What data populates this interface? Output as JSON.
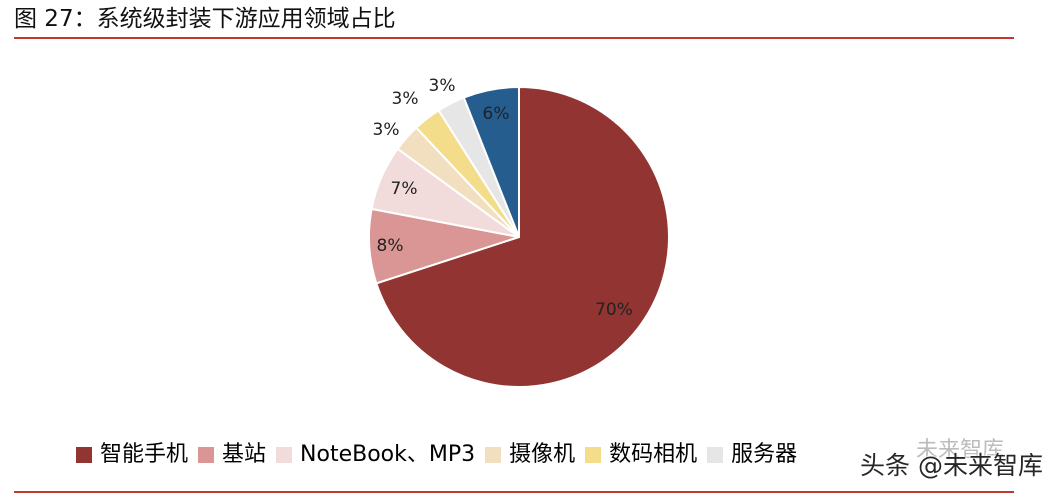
{
  "title": "图 27：系统级封装下游应用领域占比",
  "chart_data": {
    "type": "pie",
    "title": "",
    "start_angle_deg": 0,
    "direction": "clockwise",
    "slices": [
      {
        "label": "智能手机",
        "value": 70,
        "display": "70%",
        "color": "#923432"
      },
      {
        "label": "基站",
        "value": 8,
        "display": "8%",
        "color": "#d99694"
      },
      {
        "label": "NoteBook、MP3",
        "value": 7,
        "display": "7%",
        "color": "#f2dcdb"
      },
      {
        "label": "摄像机",
        "value": 3,
        "display": "3%",
        "color": "#f2dfc0"
      },
      {
        "label": "数码相机",
        "value": 3,
        "display": "3%",
        "color": "#f3dc8a"
      },
      {
        "label": "服务器",
        "value": 3,
        "display": "3%",
        "color": "#e6e6e6"
      },
      {
        "label": "",
        "value": 6,
        "display": "6%",
        "color": "#255d8f"
      }
    ],
    "legend": "bottom"
  },
  "watermark": {
    "line1": "未来智库",
    "line2": "头条 @未来智库"
  }
}
